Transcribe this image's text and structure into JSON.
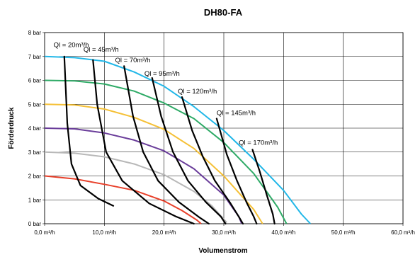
{
  "chart_data": {
    "type": "line",
    "title": "DH80-FA",
    "xlabel": "Volumenstrom",
    "ylabel": "Förderdruck",
    "xlim": [
      0,
      60
    ],
    "ylim": [
      0,
      8
    ],
    "grid": true,
    "x_ticks": [
      {
        "value": 0,
        "label": "0,0 m³/h"
      },
      {
        "value": 10,
        "label": "10,0 m³/h"
      },
      {
        "value": 20,
        "label": "20,0 m³/h"
      },
      {
        "value": 30,
        "label": "30,0 m³/h"
      },
      {
        "value": 40,
        "label": "40,0 m³/h"
      },
      {
        "value": 50,
        "label": "50,0 m³/h"
      },
      {
        "value": 60,
        "label": "60,0 m³/h"
      }
    ],
    "y_ticks": [
      {
        "value": 0,
        "label": "0 bar"
      },
      {
        "value": 1,
        "label": "1 bar"
      },
      {
        "value": 2,
        "label": "2 bar"
      },
      {
        "value": 3,
        "label": "3 bar"
      },
      {
        "value": 4,
        "label": "4 bar"
      },
      {
        "value": 5,
        "label": "5 bar"
      },
      {
        "value": 6,
        "label": "6 bar"
      },
      {
        "value": 7,
        "label": "7 bar"
      },
      {
        "value": 8,
        "label": "8 bar"
      }
    ],
    "pressure_curves": [
      {
        "color": "#e8402a",
        "points": [
          [
            0,
            2.0
          ],
          [
            5,
            1.88
          ],
          [
            10,
            1.65
          ],
          [
            15,
            1.4
          ],
          [
            20,
            0.95
          ],
          [
            23,
            0.55
          ],
          [
            25.5,
            0.15
          ],
          [
            26.2,
            0
          ]
        ]
      },
      {
        "color": "#b8b8b8",
        "points": [
          [
            0,
            3.0
          ],
          [
            5,
            2.95
          ],
          [
            10,
            2.8
          ],
          [
            15,
            2.5
          ],
          [
            20,
            2.05
          ],
          [
            25,
            1.35
          ],
          [
            28,
            0.75
          ],
          [
            30.5,
            0.05
          ]
        ]
      },
      {
        "color": "#6a3d9a",
        "points": [
          [
            0,
            4.0
          ],
          [
            5,
            3.97
          ],
          [
            10,
            3.8
          ],
          [
            15,
            3.5
          ],
          [
            20,
            3.05
          ],
          [
            25,
            2.3
          ],
          [
            30,
            1.2
          ],
          [
            32.5,
            0.3
          ],
          [
            33,
            0
          ]
        ]
      },
      {
        "color": "#f5c036",
        "points": [
          [
            0,
            5.0
          ],
          [
            5,
            4.97
          ],
          [
            10,
            4.8
          ],
          [
            15,
            4.45
          ],
          [
            20,
            3.95
          ],
          [
            25,
            3.15
          ],
          [
            30,
            2.0
          ],
          [
            35,
            0.6
          ],
          [
            36.5,
            0
          ]
        ]
      },
      {
        "color": "#2eaa66",
        "points": [
          [
            0,
            6.0
          ],
          [
            5,
            5.98
          ],
          [
            10,
            5.85
          ],
          [
            15,
            5.55
          ],
          [
            20,
            5.05
          ],
          [
            25,
            4.4
          ],
          [
            30,
            3.4
          ],
          [
            35,
            2.1
          ],
          [
            39,
            0.7
          ],
          [
            40.5,
            0
          ]
        ]
      },
      {
        "color": "#21b7e8",
        "points": [
          [
            0,
            7.0
          ],
          [
            5,
            6.95
          ],
          [
            10,
            6.8
          ],
          [
            15,
            6.35
          ],
          [
            20,
            5.75
          ],
          [
            25,
            4.9
          ],
          [
            30,
            3.9
          ],
          [
            35,
            2.7
          ],
          [
            40,
            1.4
          ],
          [
            43,
            0.4
          ],
          [
            44.5,
            0
          ]
        ]
      }
    ],
    "flow_lines": [
      {
        "label": "Ql = 20m³/h",
        "label_at": [
          1.5,
          7.4
        ],
        "points": [
          [
            3.3,
            7.0
          ],
          [
            3.8,
            4.2
          ],
          [
            4.5,
            2.5
          ],
          [
            6,
            1.6
          ],
          [
            9,
            1.05
          ],
          [
            11.5,
            0.75
          ]
        ]
      },
      {
        "label": "Ql = 45m³/h",
        "label_at": [
          6.5,
          7.2
        ],
        "points": [
          [
            8.1,
            6.85
          ],
          [
            8.8,
            5.0
          ],
          [
            10.3,
            3.0
          ],
          [
            13,
            1.8
          ],
          [
            17.5,
            0.85
          ],
          [
            22,
            0.3
          ],
          [
            25,
            0
          ]
        ]
      },
      {
        "label": "Ql = 70m³/h",
        "label_at": [
          11.8,
          6.75
        ],
        "points": [
          [
            13.3,
            6.6
          ],
          [
            14.8,
            4.5
          ],
          [
            16.5,
            3.0
          ],
          [
            19,
            1.8
          ],
          [
            22.5,
            0.9
          ],
          [
            26,
            0.25
          ],
          [
            27.5,
            0
          ]
        ]
      },
      {
        "label": "Ql = 95m³/h",
        "label_at": [
          16.7,
          6.2
        ],
        "points": [
          [
            18,
            6.1
          ],
          [
            19.5,
            4.5
          ],
          [
            21.5,
            3.0
          ],
          [
            24,
            1.8
          ],
          [
            27,
            0.9
          ],
          [
            29.5,
            0.3
          ],
          [
            30.3,
            0
          ]
        ]
      },
      {
        "label": "Ql = 120m³/h",
        "label_at": [
          22.3,
          5.45
        ],
        "points": [
          [
            23,
            5.3
          ],
          [
            24.7,
            3.9
          ],
          [
            26.5,
            2.8
          ],
          [
            28.5,
            1.8
          ],
          [
            31,
            0.9
          ],
          [
            32.5,
            0.3
          ],
          [
            33.2,
            0
          ]
        ]
      },
      {
        "label": "Ql = 145m³/h",
        "label_at": [
          28.8,
          4.55
        ],
        "points": [
          [
            28.8,
            4.4
          ],
          [
            30.5,
            2.9
          ],
          [
            32.2,
            1.8
          ],
          [
            33.8,
            0.9
          ],
          [
            35,
            0.3
          ],
          [
            35.5,
            0
          ]
        ]
      },
      {
        "label": "Ql = 170m³/h",
        "label_at": [
          32.5,
          3.3
        ],
        "points": [
          [
            34.8,
            3.1
          ],
          [
            36,
            2.2
          ],
          [
            37.2,
            1.2
          ],
          [
            38.2,
            0.4
          ],
          [
            38.5,
            0
          ]
        ]
      }
    ]
  }
}
